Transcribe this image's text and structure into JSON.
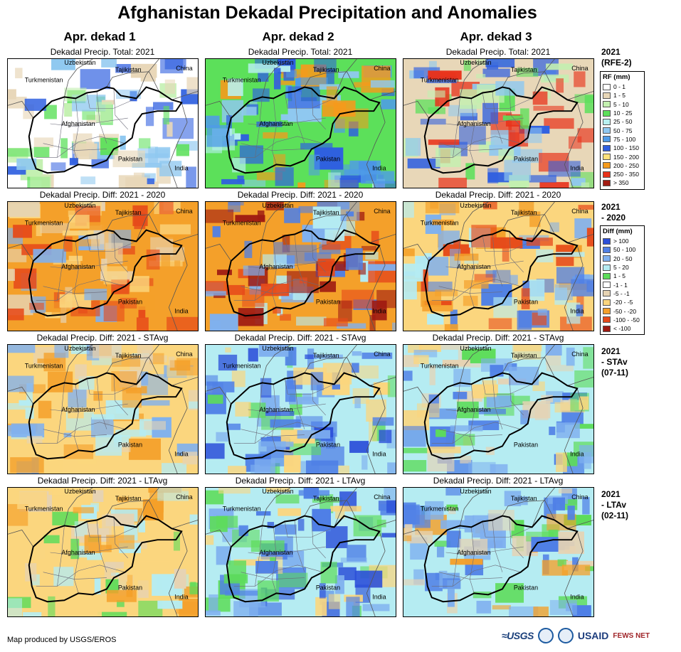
{
  "title": "Afghanistan Dekadal Precipitation and Anomalies",
  "columns": [
    "Apr. dekad 1",
    "Apr. dekad 2",
    "Apr. dekad 3"
  ],
  "row_titles": [
    "Dekadal Precip. Total: 2021",
    "Dekadal Precip. Diff: 2021 - 2020",
    "Dekadal Precip. Diff: 2021 - STAvg",
    "Dekadal Precip. Diff: 2021 - LTAvg"
  ],
  "row_side_labels": [
    [
      "2021",
      "(RFE-2)"
    ],
    [
      "2021",
      "- 2020"
    ],
    [
      "2021",
      "- STAv",
      "(07-11)"
    ],
    [
      "2021",
      "- LTAv",
      "(02-11)"
    ]
  ],
  "map_labels": {
    "uzbekistan": "Uzbekistan",
    "tajikistan": "Tajikistan",
    "china": "China",
    "turkmenistan": "Turkmenistan",
    "afghanistan": "Afghanistan",
    "pakistan": "Pakistan",
    "india": "India"
  },
  "legend_rf": {
    "title": "RF (mm)",
    "items": [
      {
        "label": "0 - 1",
        "color": "#ffffff"
      },
      {
        "label": "1 - 5",
        "color": "#e8d7b8"
      },
      {
        "label": "5 - 10",
        "color": "#c3f0b0"
      },
      {
        "label": "10 - 25",
        "color": "#5ce05a"
      },
      {
        "label": "25 - 50",
        "color": "#b8f0ef"
      },
      {
        "label": "50 - 75",
        "color": "#8fc8f0"
      },
      {
        "label": "75 - 100",
        "color": "#4f9be8"
      },
      {
        "label": "100 - 150",
        "color": "#2f5fe0"
      },
      {
        "label": "150 - 200",
        "color": "#ffe27a"
      },
      {
        "label": "200 - 250",
        "color": "#f59a1c"
      },
      {
        "label": "250 - 350",
        "color": "#e8321a"
      },
      {
        "label": "> 350",
        "color": "#a31b12"
      }
    ]
  },
  "legend_diff": {
    "title": "Diff (mm)",
    "items": [
      {
        "label": "> 100",
        "color": "#2b4fd9"
      },
      {
        "label": "50 - 100",
        "color": "#4f7fe6"
      },
      {
        "label": "20 - 50",
        "color": "#7fb0ef"
      },
      {
        "label": "5 - 20",
        "color": "#b5ecf2"
      },
      {
        "label": "1 - 5",
        "color": "#5ddc5a"
      },
      {
        "label": "-1 - 1",
        "color": "#ffffff"
      },
      {
        "label": "-5 - -1",
        "color": "#e6d3b3"
      },
      {
        "label": "-20 - -5",
        "color": "#fbd67e"
      },
      {
        "label": "-50 - -20",
        "color": "#f4a02a"
      },
      {
        "label": "-100 - -50",
        "color": "#e64a1a"
      },
      {
        "label": "< -100",
        "color": "#9e1a12"
      }
    ]
  },
  "panel_palettes": [
    [
      {
        "base": "#ffffff",
        "blobs": [
          "#e8d7b8",
          "#c3f0b0",
          "#5ce05a",
          "#8fc8f0",
          "#2f5fe0"
        ]
      },
      {
        "base": "#5ce05a",
        "blobs": [
          "#8fc8f0",
          "#4f9be8",
          "#2f5fe0",
          "#b8f0ef",
          "#f59a1c"
        ]
      },
      {
        "base": "#e8d7b8",
        "blobs": [
          "#c3f0b0",
          "#5ce05a",
          "#8fc8f0",
          "#2f5fe0",
          "#e8321a"
        ]
      }
    ],
    [
      {
        "base": "#f4a02a",
        "blobs": [
          "#e64a1a",
          "#fbd67e",
          "#e6d3b3",
          "#f4a02a",
          "#7fb0ef"
        ]
      },
      {
        "base": "#f4a02a",
        "blobs": [
          "#e64a1a",
          "#9e1a12",
          "#7fb0ef",
          "#4f7fe6",
          "#b5ecf2"
        ]
      },
      {
        "base": "#fbd67e",
        "blobs": [
          "#f4a02a",
          "#e64a1a",
          "#7fb0ef",
          "#4f7fe6",
          "#b5ecf2"
        ]
      }
    ],
    [
      {
        "base": "#fbd67e",
        "blobs": [
          "#f4a02a",
          "#e6d3b3",
          "#b5ecf2",
          "#7fb0ef",
          "#fbd67e"
        ]
      },
      {
        "base": "#b5ecf2",
        "blobs": [
          "#7fb0ef",
          "#4f7fe6",
          "#5ddc5a",
          "#fbd67e",
          "#2b4fd9"
        ]
      },
      {
        "base": "#b5ecf2",
        "blobs": [
          "#7fb0ef",
          "#4f7fe6",
          "#fbd67e",
          "#5ddc5a",
          "#e6d3b3"
        ]
      }
    ],
    [
      {
        "base": "#fbd67e",
        "blobs": [
          "#e6d3b3",
          "#f4a02a",
          "#5ddc5a",
          "#b5ecf2",
          "#fbd67e"
        ]
      },
      {
        "base": "#b5ecf2",
        "blobs": [
          "#7fb0ef",
          "#4f7fe6",
          "#5ddc5a",
          "#fbd67e",
          "#2b4fd9"
        ]
      },
      {
        "base": "#b5ecf2",
        "blobs": [
          "#7fb0ef",
          "#4f7fe6",
          "#5ddc5a",
          "#f4a02a",
          "#e6d3b3"
        ]
      }
    ]
  ],
  "credit": "Map produced by USGS/EROS",
  "logos": {
    "usgs": "≈USGS",
    "usaid": "USAID",
    "fews": "FEWS NET"
  }
}
